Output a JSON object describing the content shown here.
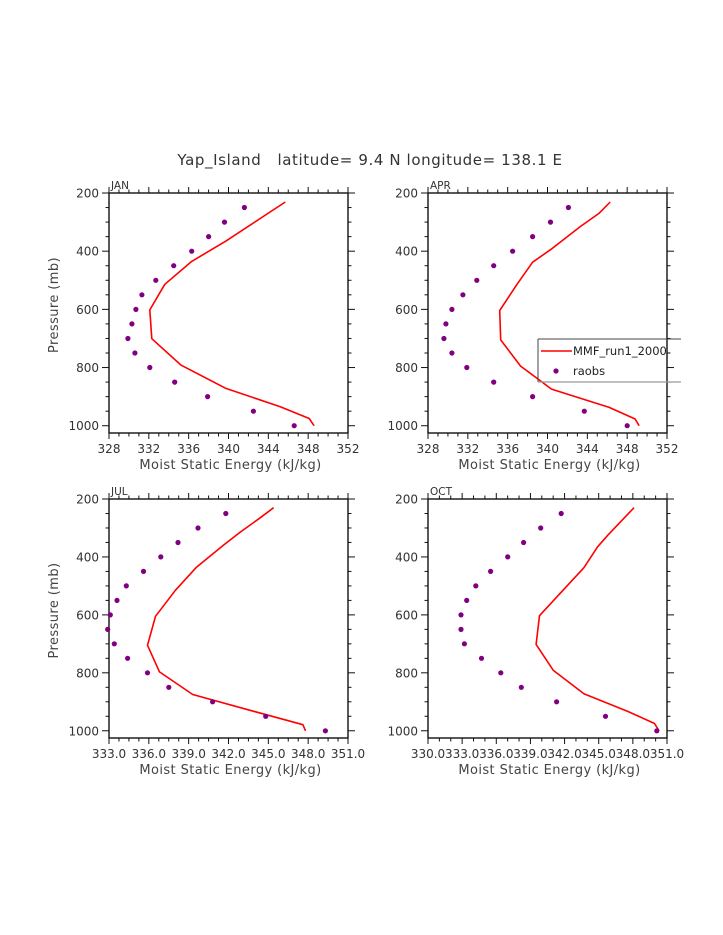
{
  "chart_data": {
    "title": "Yap_Island   latitude= 9.4 N longitude= 138.1 E",
    "type": "line",
    "legend": {
      "placement": "right-middle",
      "entries": [
        {
          "name": "MMF_run1_2000",
          "style": "line",
          "color": "#ff0000"
        },
        {
          "name": "raobs",
          "style": "marker",
          "color": "#800080"
        }
      ]
    },
    "panels": [
      {
        "label": "JAN",
        "type": "line",
        "xlabel": "Moist Static Energy (kJ/kg)",
        "ylabel": "Pressure (mb)",
        "xlim": [
          328,
          352
        ],
        "ylim": [
          200,
          1025
        ],
        "y_inverted": true,
        "xticks": [
          328,
          332,
          336,
          340,
          344,
          348,
          352
        ],
        "xtick_labels": [
          "328",
          "332",
          "336",
          "340",
          "344",
          "348",
          "352"
        ],
        "xminor_step": 1,
        "yticks": [
          200,
          400,
          600,
          800,
          1000
        ],
        "ytick_labels": [
          "200",
          "400",
          "600",
          "800",
          "1000"
        ],
        "yminor_step": 50,
        "series": [
          {
            "name": "MMF_run1_2000",
            "type": "line",
            "color": "#ff0000",
            "x": [
              345.7,
              339.7,
              336.3,
              333.6,
              332.1,
              332.3,
              335.2,
              339.7,
              345.2,
              348.1,
              348.6
            ],
            "y": [
              231,
              366,
              435,
              514,
              602,
              701,
              791,
              871,
              935,
              975,
              1000
            ]
          },
          {
            "name": "raobs",
            "type": "scatter",
            "color": "#800080",
            "x": [
              341.6,
              339.6,
              338.0,
              336.3,
              334.5,
              332.7,
              331.3,
              330.7,
              330.3,
              329.9,
              330.6,
              332.1,
              334.6,
              337.9,
              342.5,
              346.6
            ],
            "y": [
              250,
              300,
              350,
              400,
              450,
              500,
              550,
              600,
              650,
              700,
              750,
              800,
              850,
              900,
              950,
              1000
            ]
          }
        ]
      },
      {
        "label": "APR",
        "type": "line",
        "xlabel": "Moist Static Energy (kJ/kg)",
        "ylabel": "",
        "xlim": [
          328,
          352
        ],
        "ylim": [
          200,
          1025
        ],
        "y_inverted": true,
        "xticks": [
          328,
          332,
          336,
          340,
          344,
          348,
          352
        ],
        "xtick_labels": [
          "328",
          "332",
          "336",
          "340",
          "344",
          "348",
          "352"
        ],
        "xminor_step": 1,
        "yticks": [
          200,
          400,
          600,
          800,
          1000
        ],
        "ytick_labels": [
          "200",
          "400",
          "600",
          "800",
          "1000"
        ],
        "yminor_step": 50,
        "has_legend": true,
        "series": [
          {
            "name": "MMF_run1_2000",
            "type": "line",
            "color": "#ff0000",
            "x": [
              346.3,
              345.2,
              343.3,
              340.3,
              338.5,
              336.9,
              335.2,
              335.3,
              337.3,
              340.4,
              346.2,
              348.8,
              349.2
            ],
            "y": [
              231,
              269,
              315,
              395,
              438,
              516,
              604,
              705,
              795,
              874,
              937,
              977,
              1000
            ]
          },
          {
            "name": "raobs",
            "type": "scatter",
            "color": "#800080",
            "x": [
              342.1,
              340.3,
              338.5,
              336.5,
              334.6,
              332.9,
              331.5,
              330.4,
              329.8,
              329.6,
              330.4,
              331.9,
              334.6,
              338.5,
              343.7,
              348.0
            ],
            "y": [
              250,
              300,
              350,
              400,
              450,
              500,
              550,
              600,
              650,
              700,
              750,
              800,
              850,
              900,
              950,
              1000
            ]
          }
        ]
      },
      {
        "label": "JUL",
        "type": "line",
        "xlabel": "Moist Static Energy (kJ/kg)",
        "ylabel": "Pressure (mb)",
        "xlim": [
          333,
          351
        ],
        "ylim": [
          200,
          1025
        ],
        "y_inverted": true,
        "xticks": [
          333,
          336,
          339,
          342,
          345,
          348,
          351
        ],
        "xtick_labels": [
          "333.0",
          "336.0",
          "339.0",
          "342.0",
          "345.0",
          "348.0",
          "351.0"
        ],
        "xminor_step": 0.75,
        "yticks": [
          200,
          400,
          600,
          800,
          1000
        ],
        "ytick_labels": [
          "200",
          "400",
          "600",
          "800",
          "1000"
        ],
        "yminor_step": 50,
        "series": [
          {
            "name": "MMF_run1_2000",
            "type": "line",
            "color": "#ff0000",
            "x": [
              345.4,
              344.3,
              342.9,
              341.6,
              339.6,
              338.0,
              336.5,
              335.9,
              336.8,
              339.3,
              343.9,
              347.6,
              347.8
            ],
            "y": [
              230,
              268,
              314,
              360,
              435,
              515,
              605,
              705,
              797,
              875,
              933,
              979,
              1000
            ]
          },
          {
            "name": "raobs",
            "type": "scatter",
            "color": "#800080",
            "x": [
              341.8,
              339.7,
              338.2,
              336.9,
              335.6,
              334.3,
              333.6,
              333.1,
              332.9,
              333.4,
              334.4,
              335.9,
              337.5,
              340.8,
              344.8,
              349.3
            ],
            "y": [
              250,
              300,
              350,
              400,
              450,
              500,
              550,
              600,
              650,
              700,
              750,
              800,
              850,
              900,
              950,
              1000
            ]
          }
        ]
      },
      {
        "label": "OCT",
        "type": "line",
        "xlabel": "Moist Static Energy (kJ/kg)",
        "ylabel": "",
        "xlim": [
          330,
          351
        ],
        "ylim": [
          200,
          1025
        ],
        "y_inverted": true,
        "xticks": [
          330,
          333,
          336,
          339,
          342,
          345,
          348,
          351
        ],
        "xtick_labels": [
          "330.0",
          "333.0",
          "336.0",
          "339.0",
          "342.0",
          "345.0",
          "348.0",
          "351.0"
        ],
        "xminor_step": 1,
        "yticks": [
          200,
          400,
          600,
          800,
          1000
        ],
        "ytick_labels": [
          "200",
          "400",
          "600",
          "800",
          "1000"
        ],
        "yminor_step": 50,
        "series": [
          {
            "name": "MMF_run1_2000",
            "type": "line",
            "color": "#ff0000",
            "x": [
              348.1,
              345.8,
              344.9,
              343.7,
              339.8,
              339.5,
              341.0,
              343.7,
              347.6,
              349.9,
              350.3
            ],
            "y": [
              230,
              325,
              365,
              437,
              603,
              702,
              791,
              872,
              934,
              975,
              1000
            ]
          },
          {
            "name": "raobs",
            "type": "scatter",
            "color": "#800080",
            "x": [
              341.7,
              339.9,
              338.4,
              337.0,
              335.5,
              334.2,
              333.4,
              332.9,
              332.9,
              333.2,
              334.7,
              336.4,
              338.2,
              341.3,
              345.6,
              350.1
            ],
            "y": [
              250,
              300,
              350,
              400,
              450,
              500,
              550,
              600,
              650,
              700,
              750,
              800,
              850,
              900,
              950,
              1000
            ]
          }
        ]
      }
    ]
  }
}
